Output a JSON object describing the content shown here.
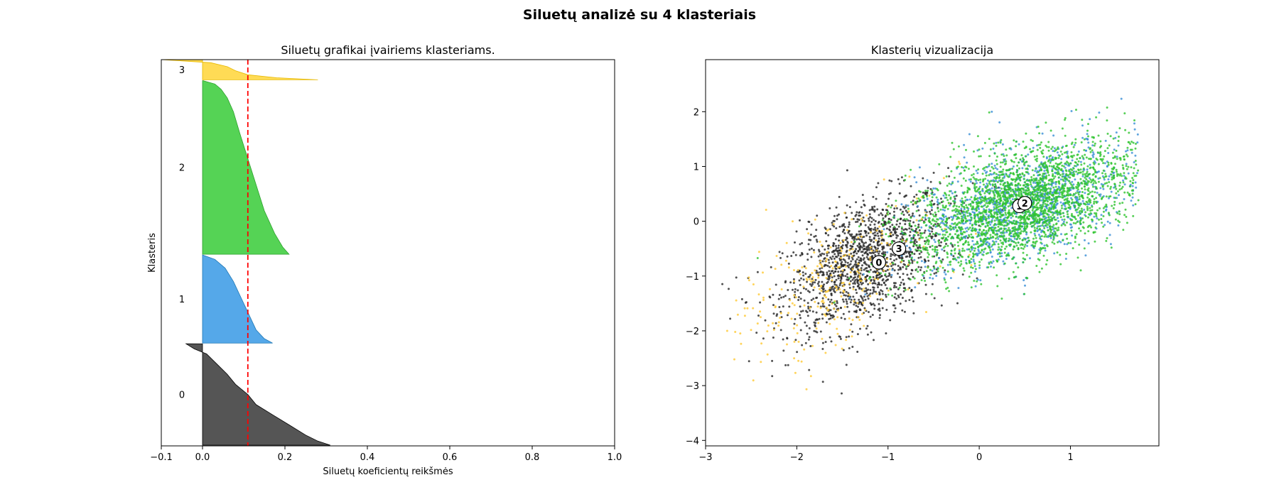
{
  "figure": {
    "suptitle": "Siluetų analizė su 4 klasteriais"
  },
  "chart_data": [
    {
      "type": "area",
      "title": "Siluetų grafikai įvairiems klasteriams.",
      "xlabel": "Siluetų koeficientų reikšmės",
      "ylabel": "Klasteris",
      "xlim": [
        -0.1,
        1.0
      ],
      "ylim": [
        0,
        5467
      ],
      "xticks": [
        -0.1,
        0.0,
        0.2,
        0.4,
        0.6,
        0.8,
        1.0
      ],
      "xtick_labels": [
        "−0.1",
        "0.0",
        "0.2",
        "0.4",
        "0.6",
        "0.8",
        "1.0"
      ],
      "grid": false,
      "average_silhouette": 0.11,
      "average_line_color": "#ff0000",
      "clusters": [
        {
          "label": "0",
          "y_start": 10,
          "size": 1435,
          "color": "#4c4c4c",
          "edge": "#000000",
          "profile": [
            [
              0,
              0.31
            ],
            [
              0.04,
              0.28
            ],
            [
              0.1,
              0.25
            ],
            [
              0.2,
              0.21
            ],
            [
              0.3,
              0.17
            ],
            [
              0.4,
              0.13
            ],
            [
              0.5,
              0.11
            ],
            [
              0.6,
              0.08
            ],
            [
              0.7,
              0.06
            ],
            [
              0.8,
              0.035
            ],
            [
              0.9,
              0.01
            ],
            [
              0.95,
              -0.02
            ],
            [
              1,
              -0.04
            ]
          ]
        },
        {
          "label": "1",
          "y_start": 1455,
          "size": 1247,
          "color": "#4ca3e8",
          "edge": "#1f77b4",
          "profile": [
            [
              0,
              0.17
            ],
            [
              0.05,
              0.15
            ],
            [
              0.15,
              0.13
            ],
            [
              0.25,
              0.12
            ],
            [
              0.4,
              0.105
            ],
            [
              0.55,
              0.09
            ],
            [
              0.7,
              0.075
            ],
            [
              0.85,
              0.055
            ],
            [
              0.95,
              0.03
            ],
            [
              1,
              0.0
            ]
          ]
        },
        {
          "label": "2",
          "y_start": 2712,
          "size": 2460,
          "color": "#4cd14c",
          "edge": "#2ca02c",
          "profile": [
            [
              0,
              0.21
            ],
            [
              0.04,
              0.195
            ],
            [
              0.12,
              0.175
            ],
            [
              0.25,
              0.15
            ],
            [
              0.4,
              0.13
            ],
            [
              0.55,
              0.11
            ],
            [
              0.7,
              0.09
            ],
            [
              0.82,
              0.075
            ],
            [
              0.9,
              0.06
            ],
            [
              0.95,
              0.045
            ],
            [
              0.98,
              0.03
            ],
            [
              1,
              0.0
            ]
          ]
        },
        {
          "label": "3",
          "y_start": 5182,
          "size": 285,
          "color": "#ffd94c",
          "edge": "#e6b800",
          "profile": [
            [
              0,
              0.28
            ],
            [
              0.1,
              0.18
            ],
            [
              0.25,
              0.11
            ],
            [
              0.45,
              0.08
            ],
            [
              0.65,
              0.06
            ],
            [
              0.85,
              0.02
            ],
            [
              1,
              -0.1
            ]
          ]
        }
      ]
    },
    {
      "type": "scatter",
      "title": "Klasterių vizualizacija",
      "xlabel": "",
      "ylabel": "",
      "xlim": [
        -3.0,
        1.97
      ],
      "ylim": [
        -4.1,
        2.95
      ],
      "xticks": [
        -3,
        -2,
        -1,
        0,
        1
      ],
      "xtick_labels": [
        "−3",
        "−2",
        "−1",
        "0",
        "1"
      ],
      "yticks": [
        -4,
        -3,
        -2,
        -1,
        0,
        1,
        2
      ],
      "ytick_labels": [
        "−4",
        "−3",
        "−2",
        "−1",
        "0",
        "1",
        "2"
      ],
      "grid": false,
      "series": [
        {
          "cluster": 0,
          "color": "#262626",
          "count": 1450,
          "center": [
            -1.25,
            -0.75
          ],
          "spread": [
            0.45,
            0.85
          ],
          "slope": 1.2
        },
        {
          "cluster": 1,
          "color": "#3a8fd6",
          "count": 1250,
          "center": [
            0.45,
            0.3
          ],
          "spread": [
            0.55,
            0.75
          ],
          "slope": 0.85
        },
        {
          "cluster": 2,
          "color": "#2fc42f",
          "count": 2450,
          "center": [
            0.45,
            0.3
          ],
          "spread": [
            0.6,
            0.75
          ],
          "slope": 0.85
        },
        {
          "cluster": 3,
          "color": "#ffc933",
          "count": 285,
          "center": [
            -1.6,
            -1.1
          ],
          "spread": [
            0.55,
            0.9
          ],
          "slope": 1.3
        }
      ],
      "centers": [
        {
          "label": "0",
          "x": -1.1,
          "y": -0.75
        },
        {
          "label": "1",
          "x": 0.44,
          "y": 0.28
        },
        {
          "label": "2",
          "x": 0.5,
          "y": 0.33
        },
        {
          "label": "3",
          "x": -0.88,
          "y": -0.5
        }
      ]
    }
  ]
}
